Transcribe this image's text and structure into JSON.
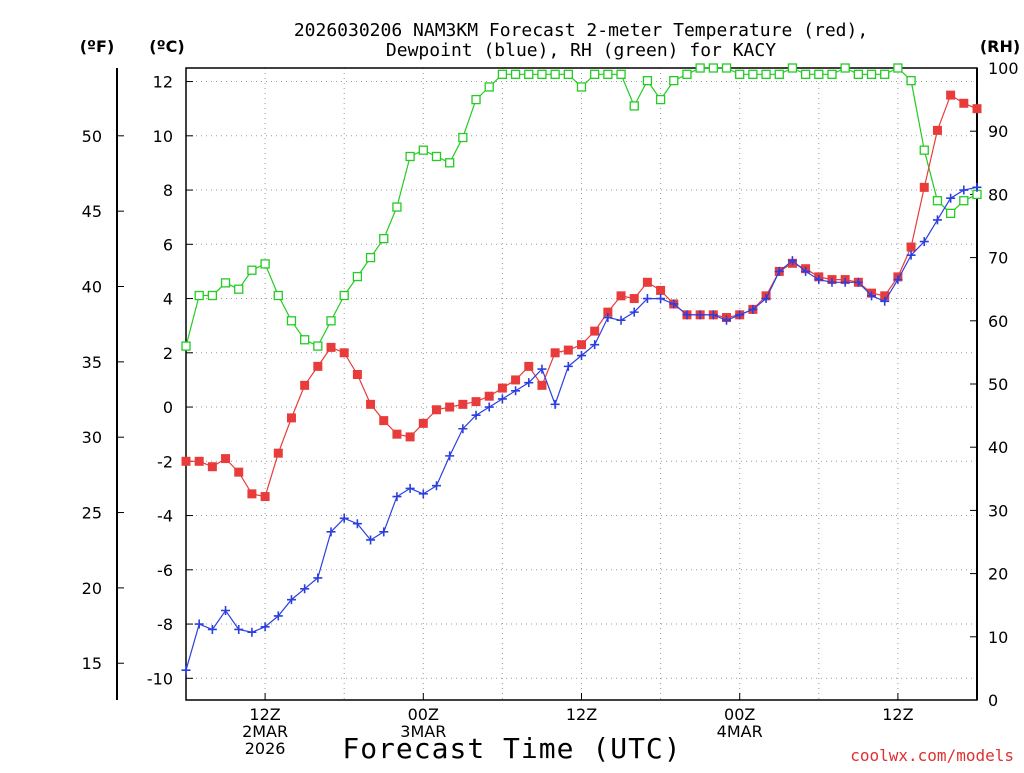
{
  "chart_data": {
    "type": "line",
    "title_lines": [
      "2026030206 NAM3KM Forecast 2-meter Temperature (red),",
      "Dewpoint (blue), RH (green) for KACY"
    ],
    "xlabel": "Forecast Time (UTC)",
    "credit": "coolwx.com/models",
    "units": {
      "fahrenheit": "(ºF)",
      "celsius": "(ºC)",
      "rh": "(RH)"
    },
    "x_range_hours": [
      0,
      60
    ],
    "celsius_axis": {
      "range": [
        -10.8,
        12.5
      ],
      "ticks": [
        -10,
        -8,
        -6,
        -4,
        -2,
        0,
        2,
        4,
        6,
        8,
        10,
        12
      ]
    },
    "fahrenheit_axis": {
      "ticks": [
        15,
        20,
        25,
        30,
        35,
        40,
        45,
        50
      ]
    },
    "rh_axis": {
      "range": [
        0,
        100
      ],
      "ticks": [
        0,
        10,
        20,
        30,
        40,
        50,
        60,
        70,
        80,
        90,
        100
      ]
    },
    "x_ticks": [
      {
        "hour": 6,
        "lines": [
          "12Z",
          "2MAR",
          "2026"
        ]
      },
      {
        "hour": 18,
        "lines": [
          "00Z",
          "3MAR"
        ]
      },
      {
        "hour": 30,
        "lines": [
          "12Z"
        ]
      },
      {
        "hour": 42,
        "lines": [
          "00Z",
          "4MAR"
        ]
      },
      {
        "hour": 54,
        "lines": [
          "12Z"
        ]
      }
    ],
    "x_grid_hours": [
      6,
      12,
      18,
      24,
      30,
      36,
      42,
      48,
      54
    ],
    "colors": {
      "temperature": "#e83c3c",
      "dewpoint": "#2b3fe0",
      "rh": "#22cc22"
    },
    "series": [
      {
        "name": "Temperature",
        "units": "C",
        "marker": "filled-square",
        "hours": [
          0,
          1,
          2,
          3,
          4,
          5,
          6,
          7,
          8,
          9,
          10,
          11,
          12,
          13,
          14,
          15,
          16,
          17,
          18,
          19,
          20,
          21,
          22,
          23,
          24,
          25,
          26,
          27,
          28,
          29,
          30,
          31,
          32,
          33,
          34,
          35,
          36,
          37,
          38,
          39,
          40,
          41,
          42,
          43,
          44,
          45,
          46,
          47,
          48,
          49,
          50,
          51,
          52,
          53,
          54,
          55,
          56,
          57,
          58,
          59,
          60
        ],
        "values": [
          -2.0,
          -2.0,
          -2.2,
          -1.9,
          -2.4,
          -3.2,
          -3.3,
          -1.7,
          -0.4,
          0.8,
          1.5,
          2.2,
          2.0,
          1.2,
          0.1,
          -0.5,
          -1.0,
          -1.1,
          -0.6,
          -0.1,
          0.0,
          0.1,
          0.2,
          0.4,
          0.7,
          1.0,
          1.5,
          0.8,
          2.0,
          2.1,
          2.3,
          2.8,
          3.5,
          4.1,
          4.0,
          4.6,
          4.3,
          3.8,
          3.4,
          3.4,
          3.4,
          3.3,
          3.4,
          3.6,
          4.1,
          5.0,
          5.3,
          5.1,
          4.8,
          4.7,
          4.7,
          4.6,
          4.2,
          4.1,
          4.8,
          5.9,
          8.1,
          10.2,
          11.5,
          11.2,
          11.0
        ]
      },
      {
        "name": "Dewpoint",
        "units": "C",
        "marker": "plus",
        "hours": [
          0,
          1,
          2,
          3,
          4,
          5,
          6,
          7,
          8,
          9,
          10,
          11,
          12,
          13,
          14,
          15,
          16,
          17,
          18,
          19,
          20,
          21,
          22,
          23,
          24,
          25,
          26,
          27,
          28,
          29,
          30,
          31,
          32,
          33,
          34,
          35,
          36,
          37,
          38,
          39,
          40,
          41,
          42,
          43,
          44,
          45,
          46,
          47,
          48,
          49,
          50,
          51,
          52,
          53,
          54,
          55,
          56,
          57,
          58,
          59,
          60
        ],
        "values": [
          -9.7,
          -8.0,
          -8.2,
          -7.5,
          -8.2,
          -8.3,
          -8.1,
          -7.7,
          -7.1,
          -6.7,
          -6.3,
          -4.6,
          -4.1,
          -4.3,
          -4.9,
          -4.6,
          -3.3,
          -3.0,
          -3.2,
          -2.9,
          -1.8,
          -0.8,
          -0.3,
          0.0,
          0.3,
          0.6,
          0.9,
          1.4,
          0.1,
          1.5,
          1.9,
          2.3,
          3.3,
          3.2,
          3.5,
          4.0,
          4.0,
          3.8,
          3.4,
          3.4,
          3.4,
          3.2,
          3.4,
          3.6,
          4.0,
          5.0,
          5.4,
          5.0,
          4.7,
          4.6,
          4.6,
          4.6,
          4.1,
          3.9,
          4.7,
          5.6,
          6.1,
          6.9,
          7.7,
          8.0,
          8.1
        ]
      },
      {
        "name": "RH",
        "units": "%",
        "marker": "open-square",
        "hours": [
          0,
          1,
          2,
          3,
          4,
          5,
          6,
          7,
          8,
          9,
          10,
          11,
          12,
          13,
          14,
          15,
          16,
          17,
          18,
          19,
          20,
          21,
          22,
          23,
          24,
          25,
          26,
          27,
          28,
          29,
          30,
          31,
          32,
          33,
          34,
          35,
          36,
          37,
          38,
          39,
          40,
          41,
          42,
          43,
          44,
          45,
          46,
          47,
          48,
          49,
          50,
          51,
          52,
          53,
          54,
          55,
          56,
          57,
          58,
          59,
          60
        ],
        "values": [
          56,
          64,
          64,
          66,
          65,
          68,
          69,
          64,
          60,
          57,
          56,
          60,
          64,
          67,
          70,
          73,
          78,
          86,
          87,
          86,
          85,
          89,
          95,
          97,
          99,
          99,
          99,
          99,
          99,
          99,
          97,
          99,
          99,
          99,
          94,
          98,
          95,
          98,
          99,
          100,
          100,
          100,
          99,
          99,
          99,
          99,
          100,
          99,
          99,
          99,
          100,
          99,
          99,
          99,
          100,
          98,
          87,
          79,
          77,
          79,
          80
        ]
      }
    ]
  }
}
